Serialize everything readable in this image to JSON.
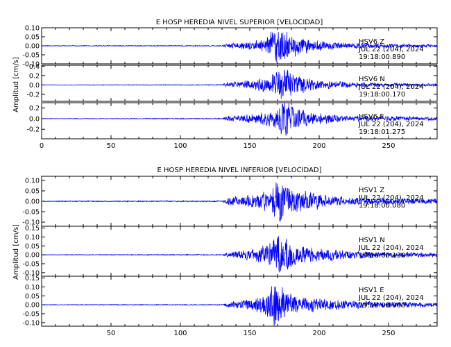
{
  "chart_data": [
    {
      "type": "line",
      "title": "E HOSP HEREDIA NIVEL SUPERIOR [VELOCIDAD]",
      "ylabel": "Amplitud [cm/s]",
      "xlim": [
        0,
        285
      ],
      "x_ticks": [
        "0",
        "50",
        "100",
        "150",
        "200",
        "250"
      ],
      "color": "#0000ff",
      "panels": [
        {
          "station": "HSV6",
          "component": "Z",
          "date": "JUL 22 (204), 2024",
          "time": "19:18:00.890",
          "ylim": [
            -0.1,
            0.1
          ],
          "yticks": [
            0.1,
            0.05,
            0.0,
            -0.05,
            -0.1
          ],
          "ytick_labels": [
            "0.10",
            "0.05",
            "0.00",
            "-0.05",
            "-0.10"
          ],
          "envelope": [
            [
              0,
              0.002
            ],
            [
              130,
              0.003
            ],
            [
              134,
              0.015
            ],
            [
              145,
              0.02
            ],
            [
              160,
              0.035
            ],
            [
              166,
              0.08
            ],
            [
              170,
              0.1
            ],
            [
              175,
              0.09
            ],
            [
              180,
              0.07
            ],
            [
              190,
              0.04
            ],
            [
              210,
              0.02
            ],
            [
              240,
              0.012
            ],
            [
              285,
              0.008
            ]
          ]
        },
        {
          "station": "HSV6",
          "component": "N",
          "date": "JUL 22 (204), 2024",
          "time": "19:18:00.170",
          "ylim": [
            -0.35,
            0.42
          ],
          "yticks": [
            0.4,
            0.2,
            0.0,
            -0.2
          ],
          "ytick_labels": [
            "0.4",
            "0.2",
            "0.0",
            "-0.2"
          ],
          "envelope": [
            [
              0,
              0.005
            ],
            [
              130,
              0.01
            ],
            [
              134,
              0.05
            ],
            [
              145,
              0.08
            ],
            [
              160,
              0.15
            ],
            [
              168,
              0.25
            ],
            [
              174,
              0.38
            ],
            [
              178,
              0.3
            ],
            [
              185,
              0.2
            ],
            [
              200,
              0.1
            ],
            [
              230,
              0.05
            ],
            [
              285,
              0.03
            ]
          ]
        },
        {
          "station": "HSV6",
          "component": "E",
          "date": "JUL 22 (204), 2024",
          "time": "19:18:01.275",
          "ylim": [
            -0.38,
            0.3
          ],
          "yticks": [
            0.2,
            0.0,
            -0.2
          ],
          "ytick_labels": [
            "0.2",
            "0.0",
            "-0.2"
          ],
          "envelope": [
            [
              0,
              0.005
            ],
            [
              130,
              0.01
            ],
            [
              134,
              0.05
            ],
            [
              150,
              0.08
            ],
            [
              165,
              0.15
            ],
            [
              170,
              0.25
            ],
            [
              176,
              0.35
            ],
            [
              182,
              0.22
            ],
            [
              195,
              0.12
            ],
            [
              220,
              0.06
            ],
            [
              285,
              0.03
            ]
          ]
        }
      ]
    },
    {
      "type": "line",
      "title": "E HOSP HEREDIA NIVEL INFERIOR [VELOCIDAD]",
      "ylabel": "Amplitud [cm/s]",
      "xlim": [
        0,
        285
      ],
      "x_ticks": [
        "50",
        "100",
        "150",
        "200",
        "250"
      ],
      "color": "#0000ff",
      "panels": [
        {
          "station": "HSV1",
          "component": "Z",
          "date": "JUL 22 (204), 2024",
          "time": "19:18:00.080",
          "ylim": [
            -0.12,
            0.12
          ],
          "yticks": [
            0.1,
            0.05,
            0.0,
            -0.05,
            -0.1
          ],
          "ytick_labels": [
            "0.10",
            "0.05",
            "0.00",
            "-0.05",
            "-0.10"
          ],
          "envelope": [
            [
              0,
              0.002
            ],
            [
              130,
              0.003
            ],
            [
              134,
              0.02
            ],
            [
              150,
              0.03
            ],
            [
              165,
              0.05
            ],
            [
              170,
              0.11
            ],
            [
              175,
              0.09
            ],
            [
              182,
              0.06
            ],
            [
              195,
              0.04
            ],
            [
              220,
              0.02
            ],
            [
              285,
              0.012
            ]
          ]
        },
        {
          "station": "HSV1",
          "component": "N",
          "date": "JUL 22 (204), 2024",
          "time": "19:18:00.130",
          "ylim": [
            -0.12,
            0.16
          ],
          "yticks": [
            0.15,
            0.1,
            0.05,
            0.0,
            -0.05,
            -0.1
          ],
          "ytick_labels": [
            "0.15",
            "0.10",
            "0.05",
            "0.00",
            "-0.05",
            "-0.10"
          ],
          "envelope": [
            [
              0,
              0.002
            ],
            [
              130,
              0.003
            ],
            [
              134,
              0.015
            ],
            [
              150,
              0.03
            ],
            [
              165,
              0.07
            ],
            [
              170,
              0.12
            ],
            [
              176,
              0.1
            ],
            [
              185,
              0.06
            ],
            [
              200,
              0.04
            ],
            [
              230,
              0.02
            ],
            [
              285,
              0.012
            ]
          ]
        },
        {
          "station": "HSV1",
          "component": "E",
          "date": "JUL 22 (204), 2024",
          "time": "19:18:00.900",
          "ylim": [
            -0.12,
            0.16
          ],
          "yticks": [
            0.15,
            0.1,
            0.05,
            0.0,
            -0.05,
            -0.1
          ],
          "ytick_labels": [
            "0.15",
            "0.10",
            "0.05",
            "0.00",
            "-0.05",
            "-0.10"
          ],
          "envelope": [
            [
              0,
              0.002
            ],
            [
              130,
              0.003
            ],
            [
              134,
              0.015
            ],
            [
              150,
              0.03
            ],
            [
              162,
              0.06
            ],
            [
              168,
              0.14
            ],
            [
              174,
              0.1
            ],
            [
              182,
              0.06
            ],
            [
              200,
              0.035
            ],
            [
              230,
              0.02
            ],
            [
              285,
              0.012
            ]
          ]
        }
      ]
    }
  ]
}
